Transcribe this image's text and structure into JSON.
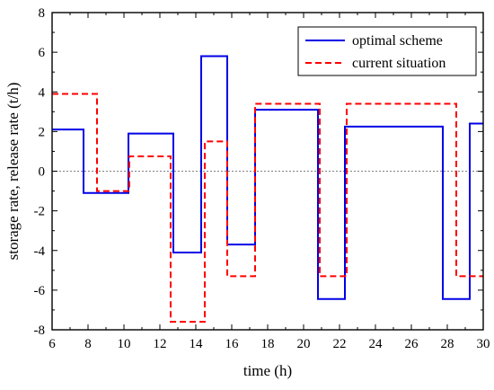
{
  "chart_data": {
    "type": "line",
    "title": "",
    "xlabel": "time (h)",
    "ylabel": "storage rate, release rate (t/h)",
    "xlim": [
      6,
      30
    ],
    "ylim": [
      -8,
      8
    ],
    "xticks": [
      6,
      8,
      10,
      12,
      14,
      16,
      18,
      20,
      22,
      24,
      26,
      28,
      30
    ],
    "yticks": [
      -8,
      -6,
      -4,
      -2,
      0,
      2,
      4,
      6,
      8
    ],
    "zero_reference_line": true,
    "grid": false,
    "legend": {
      "position": "top-right"
    },
    "series": [
      {
        "name": "optimal scheme",
        "color": "#0000e6",
        "style": "solid",
        "step": "post",
        "x": [
          6,
          7.75,
          10.25,
          12.75,
          14.3,
          15.75,
          17.3,
          20.8,
          22.3,
          27.75,
          29.25,
          30
        ],
        "values": [
          2.1,
          -1.1,
          1.9,
          -4.1,
          5.8,
          -3.7,
          3.1,
          -6.45,
          2.25,
          -6.45,
          2.4,
          2.4
        ]
      },
      {
        "name": "current situation",
        "color": "#ff0000",
        "style": "dashed",
        "step": "post",
        "x": [
          6,
          8.5,
          10.3,
          12.6,
          14.5,
          15.75,
          17.3,
          20.9,
          22.4,
          28.5,
          30
        ],
        "values": [
          3.9,
          -1.0,
          0.75,
          -7.6,
          1.5,
          -5.3,
          3.4,
          -5.3,
          3.4,
          -5.3,
          -5.3
        ]
      }
    ]
  }
}
